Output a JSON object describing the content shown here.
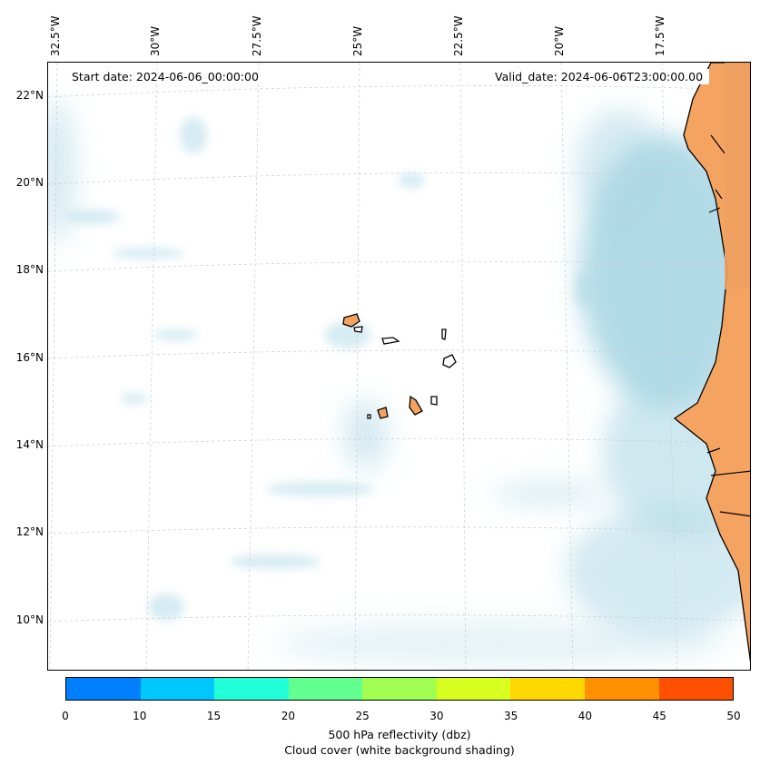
{
  "lon_labels": [
    "32.5°W",
    "30°W",
    "27.5°W",
    "25°W",
    "22.5°W",
    "20°W",
    "17.5°W"
  ],
  "lat_labels": [
    "22°N",
    "20°N",
    "18°N",
    "16°N",
    "14°N",
    "12°N",
    "10°N"
  ],
  "start_date": "Start date: 2024-06-06_00:00:00",
  "valid_date": "Valid_date: 2024-06-06T23:00:00.00",
  "colorbar": {
    "colors": [
      "#0080ff",
      "#00c8ff",
      "#20ffd8",
      "#60ff90",
      "#a0ff50",
      "#d8ff20",
      "#ffd800",
      "#ff9000",
      "#ff5000"
    ],
    "ticks": [
      "0",
      "10",
      "15",
      "20",
      "25",
      "30",
      "35",
      "40",
      "45",
      "50"
    ],
    "label1": "500 hPa reflectivity (dbz)",
    "label2": "Cloud cover (white background shading)"
  },
  "colors": {
    "land": "#f4a460",
    "cloud": "#add8e6"
  }
}
